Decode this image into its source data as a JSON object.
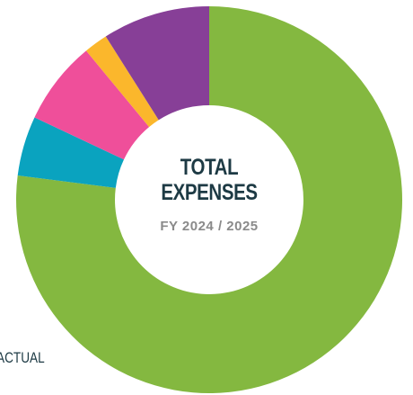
{
  "chart_data": {
    "type": "donut",
    "title": "TOTAL EXPENSES",
    "subtitle": "FY 2024 / 2025",
    "annotation": "ACTUAL",
    "categories": [
      null,
      null,
      null,
      null,
      null
    ],
    "values": [
      77,
      5,
      7,
      2,
      9
    ],
    "colors": [
      "#84b840",
      "#0aa3bf",
      "#ef4f9a",
      "#fbb72c",
      "#873f97"
    ]
  }
}
